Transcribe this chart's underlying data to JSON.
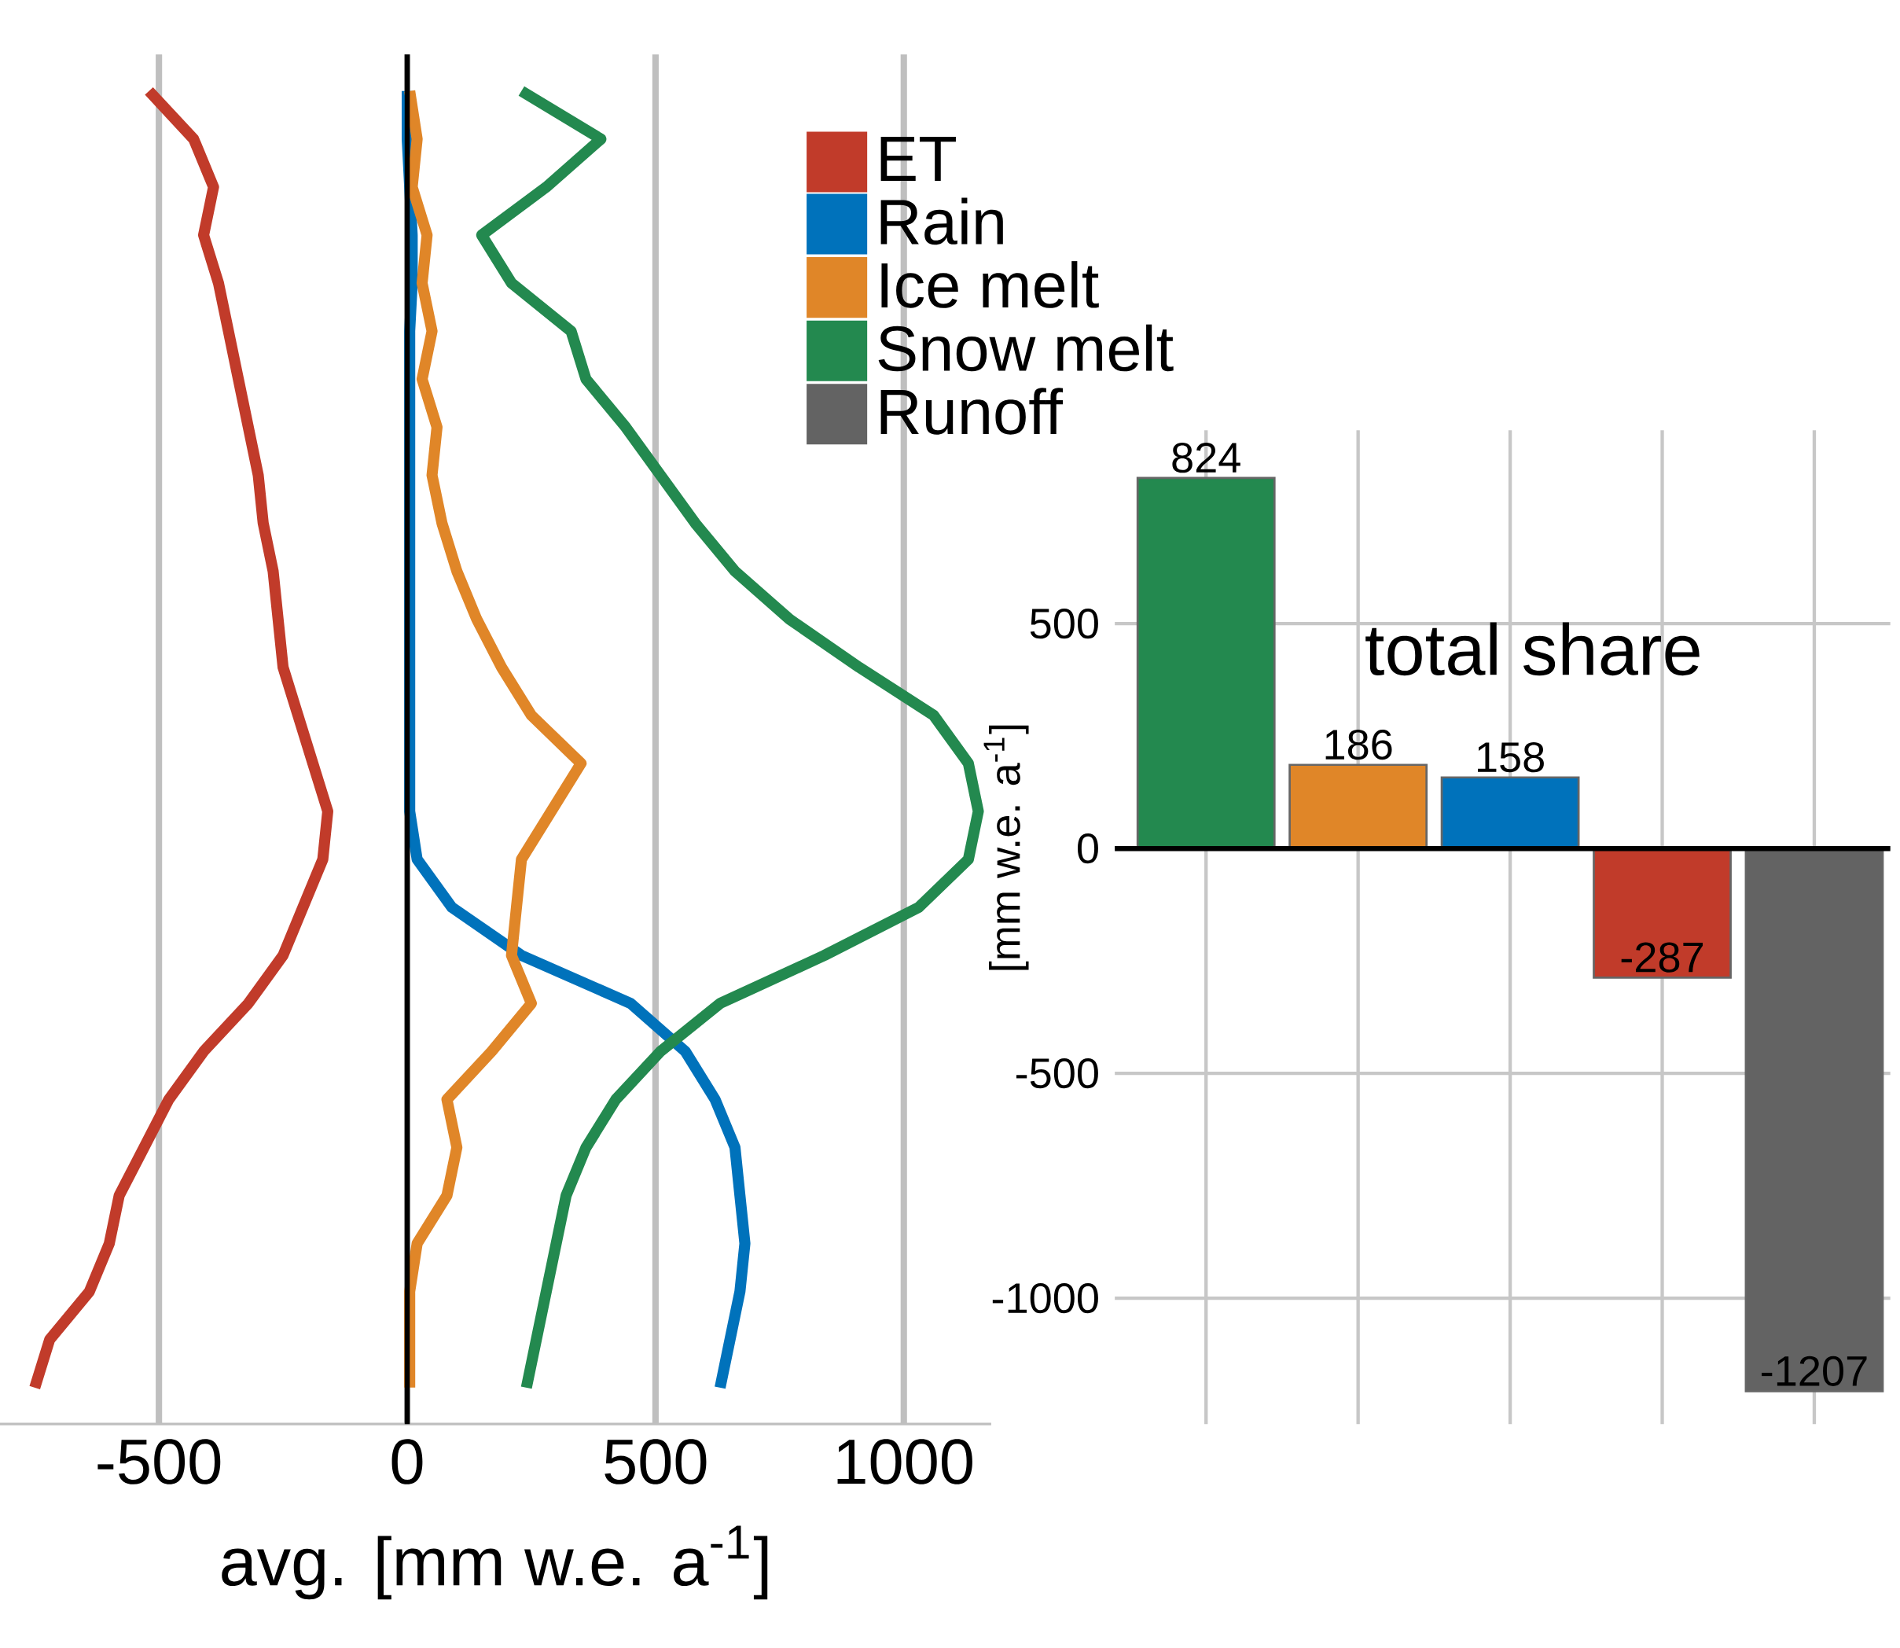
{
  "chart_data": [
    {
      "type": "line",
      "orientation": "horizontal",
      "categories": [
        null,
        null,
        null,
        null,
        null,
        null,
        null,
        null,
        null,
        null,
        null,
        null,
        null,
        null,
        null,
        null,
        null,
        null,
        null,
        null,
        null,
        null,
        null,
        null,
        null,
        null,
        null,
        null
      ],
      "xlabel": "avg.  [mm w.e. a$^{-1}$]",
      "xlim": [
        -820,
        1176
      ],
      "xticks": [
        -500,
        0,
        500,
        1000
      ],
      "tick_labels": "x",
      "grid": "x",
      "legend": "top right",
      "marker": "none",
      "line_style": "solid",
      "ref_lines": [
        {
          "axis": "x",
          "value": 0,
          "color": "#000000"
        }
      ],
      "series": [
        {
          "name": "ET",
          "color": "#c13b2a",
          "values": [
            -520,
            -430,
            -390,
            -410,
            -380,
            -360,
            -340,
            -320,
            -300,
            -290,
            -270,
            -260,
            -250,
            -220,
            -190,
            -160,
            -170,
            -210,
            -250,
            -320,
            -410,
            -480,
            -530,
            -580,
            -600,
            -640,
            -720,
            -750
          ]
        },
        {
          "name": "Rain",
          "color": "#0072bb",
          "values": [
            0,
            0,
            5,
            10,
            10,
            5,
            5,
            5,
            5,
            5,
            5,
            5,
            5,
            5,
            5,
            5,
            20,
            90,
            230,
            450,
            560,
            620,
            660,
            670,
            680,
            670,
            650,
            630
          ]
        },
        {
          "name": "Ice melt",
          "color": "#e08628",
          "values": [
            5,
            20,
            10,
            40,
            30,
            50,
            30,
            60,
            50,
            70,
            100,
            140,
            190,
            250,
            350,
            290,
            230,
            220,
            210,
            250,
            170,
            80,
            100,
            80,
            20,
            5,
            5,
            5
          ]
        },
        {
          "name": "Snow melt",
          "color": "#23894f",
          "values": [
            230,
            390,
            280,
            150,
            210,
            330,
            360,
            440,
            510,
            580,
            660,
            770,
            910,
            1060,
            1130,
            1150,
            1130,
            1030,
            840,
            630,
            510,
            420,
            360,
            320,
            300,
            280,
            260,
            240
          ]
        },
        {
          "name": "Runoff",
          "color": "#636363",
          "values": [
            null,
            null,
            null,
            null,
            null,
            null,
            null,
            null,
            null,
            null,
            null,
            null,
            null,
            null,
            null,
            null,
            null,
            null,
            null,
            null,
            null,
            null,
            null,
            null,
            null,
            null,
            null,
            null
          ]
        }
      ]
    },
    {
      "type": "bar",
      "categories": [
        null,
        null,
        null,
        null,
        null
      ],
      "values": [
        824,
        186,
        158,
        -287,
        -1207
      ],
      "colors": [
        "#23894f",
        "#e08628",
        "#0072bb",
        "#c13b2a",
        "#636363"
      ],
      "value_labels": [
        "824",
        "186",
        "158",
        "-287",
        "-1207"
      ],
      "ylabel": "[mm w.e. a$^{-1}$]",
      "ylim": [
        -1280,
        930
      ],
      "yticks": [
        -1000,
        -500,
        0,
        500
      ],
      "tick_labels": "y",
      "grid": true,
      "annotations": [
        "total share"
      ],
      "ref_lines": [
        {
          "axis": "y",
          "value": 0,
          "color": "#000000"
        }
      ]
    }
  ]
}
